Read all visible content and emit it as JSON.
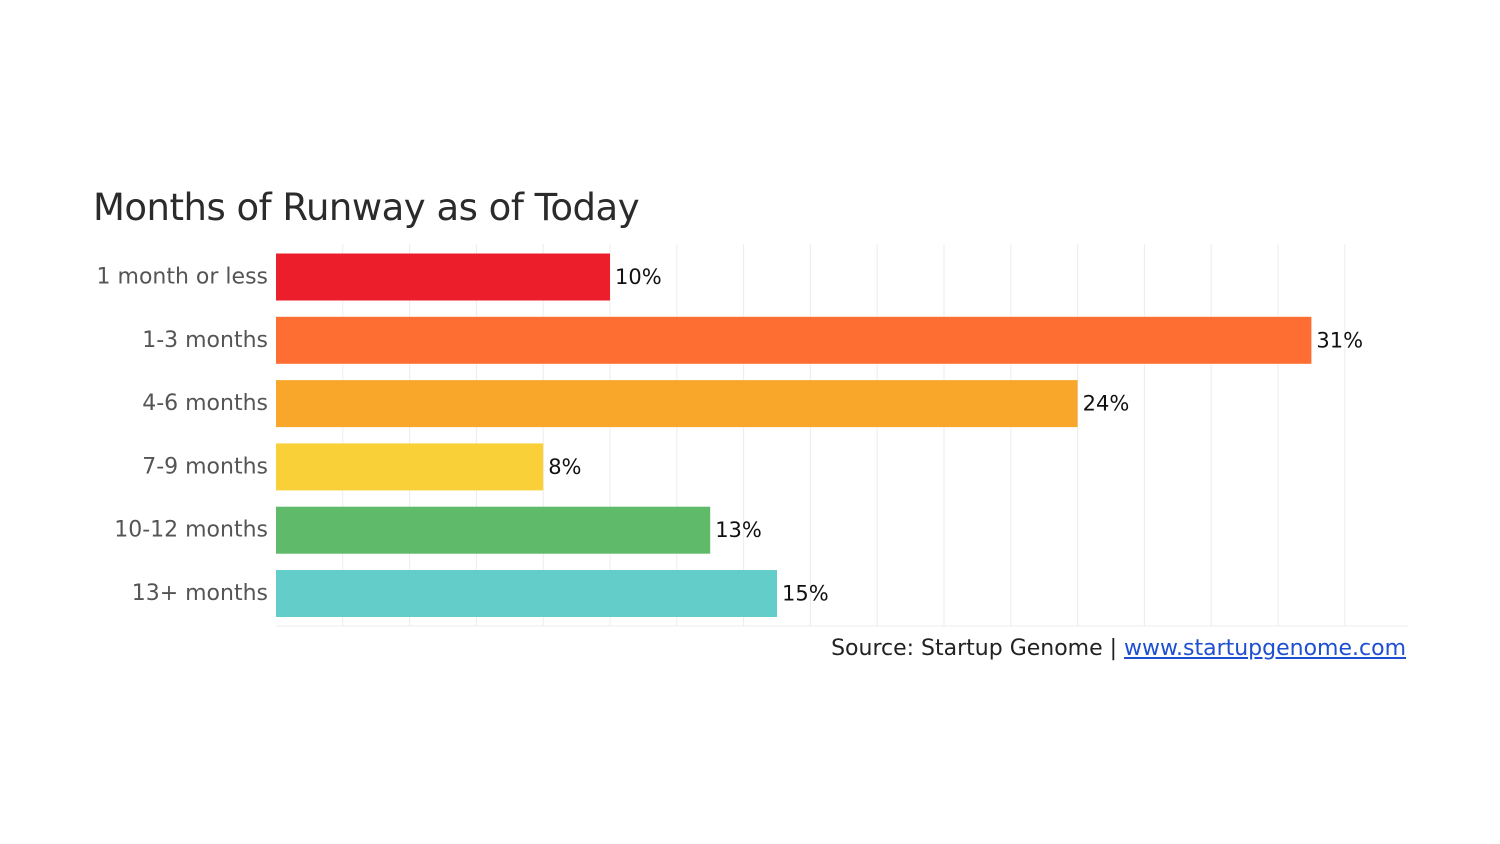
{
  "chart_data": {
    "type": "bar",
    "orientation": "horizontal",
    "title": "Months of Runway as of Today",
    "categories": [
      "1 month or less",
      "1-3 months",
      "4-6 months",
      "7-9 months",
      "10-12 months",
      "13+ months"
    ],
    "values": [
      10,
      31,
      24,
      8,
      13,
      15
    ],
    "value_labels": [
      "10%",
      "31%",
      "24%",
      "8%",
      "13%",
      "15%"
    ],
    "colors": [
      "#ec1e2c",
      "#fe6d32",
      "#f8a72b",
      "#f9d038",
      "#5fba6a",
      "#63cdc9"
    ],
    "xlim": [
      0,
      34
    ],
    "grid_step": 2,
    "xlabel": "",
    "ylabel": "",
    "grid": true
  },
  "source": {
    "prefix": "Source: Startup Genome",
    "separator": " | ",
    "link_text": "www.startupgenome.com"
  }
}
